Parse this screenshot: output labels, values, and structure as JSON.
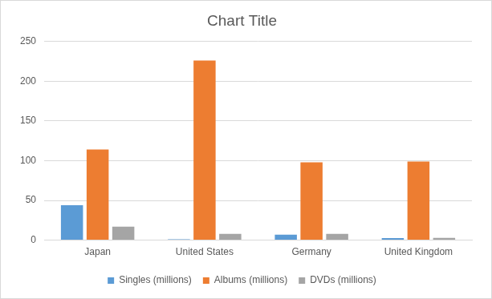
{
  "chart_data": {
    "type": "bar",
    "title": "Chart Title",
    "categories": [
      "Japan",
      "United States",
      "Germany",
      "United Kingdom"
    ],
    "series": [
      {
        "name": "Singles (millions)",
        "color": "#5b9bd5",
        "values": [
          44,
          1,
          7,
          2.5
        ]
      },
      {
        "name": "Albums (millions)",
        "color": "#ed7d31",
        "values": [
          114,
          226,
          98,
          99
        ]
      },
      {
        "name": "DVDs (millions)",
        "color": "#a5a5a5",
        "values": [
          17,
          8,
          8,
          3
        ]
      }
    ],
    "ylim": [
      0,
      250
    ],
    "yticks": [
      0,
      50,
      100,
      150,
      200,
      250
    ],
    "grid": true,
    "legend": "bottom"
  }
}
